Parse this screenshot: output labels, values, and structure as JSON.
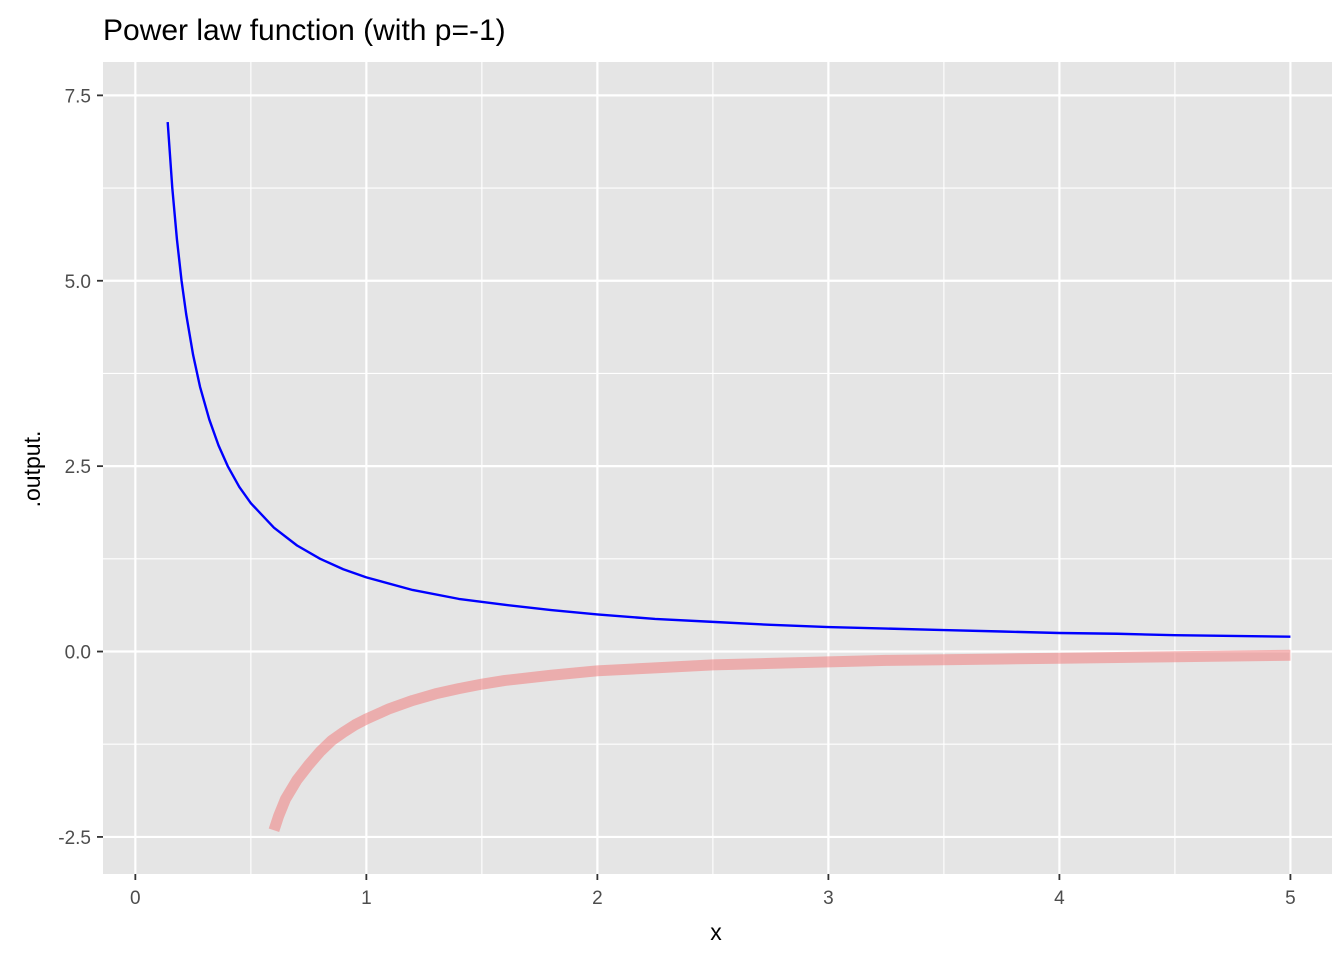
{
  "chart_data": {
    "type": "line",
    "title": "Power law function (with p=-1)",
    "xlabel": "x",
    "ylabel": ".output.",
    "xlim": [
      -0.14,
      5.18
    ],
    "ylim": [
      -3.0,
      7.95
    ],
    "x_ticks": [
      0,
      1,
      2,
      3,
      4,
      5
    ],
    "x_tick_labels": [
      "0",
      "1",
      "2",
      "3",
      "4",
      "5"
    ],
    "y_ticks": [
      -2.5,
      0.0,
      2.5,
      5.0,
      7.5
    ],
    "y_tick_labels": [
      "-2.5",
      "0.0",
      "2.5",
      "5.0",
      "7.5"
    ],
    "grid": true,
    "legend": "none",
    "panel_color": "#e5e5e5",
    "grid_color": "#ffffff",
    "series": [
      {
        "color": "#0000ff",
        "opacity": 1,
        "points": [
          [
            0.14,
            7.14
          ],
          [
            0.16,
            6.25
          ],
          [
            0.18,
            5.56
          ],
          [
            0.2,
            5.0
          ],
          [
            0.22,
            4.55
          ],
          [
            0.25,
            4.0
          ],
          [
            0.28,
            3.57
          ],
          [
            0.32,
            3.13
          ],
          [
            0.36,
            2.78
          ],
          [
            0.4,
            2.5
          ],
          [
            0.45,
            2.22
          ],
          [
            0.5,
            2.0
          ],
          [
            0.6,
            1.67
          ],
          [
            0.7,
            1.43
          ],
          [
            0.8,
            1.25
          ],
          [
            0.9,
            1.11
          ],
          [
            1.0,
            1.0
          ],
          [
            1.2,
            0.83
          ],
          [
            1.4,
            0.71
          ],
          [
            1.6,
            0.63
          ],
          [
            1.8,
            0.56
          ],
          [
            2.0,
            0.5
          ],
          [
            2.25,
            0.44
          ],
          [
            2.5,
            0.4
          ],
          [
            2.75,
            0.36
          ],
          [
            3.0,
            0.33
          ],
          [
            3.25,
            0.31
          ],
          [
            3.5,
            0.29
          ],
          [
            3.75,
            0.27
          ],
          [
            4.0,
            0.25
          ],
          [
            4.25,
            0.24
          ],
          [
            4.5,
            0.22
          ],
          [
            4.75,
            0.21
          ],
          [
            5.0,
            0.2
          ]
        ]
      },
      {
        "color": "#f08080",
        "opacity": 0.55,
        "points": [
          [
            0.6,
            -2.41
          ],
          [
            0.62,
            -2.22
          ],
          [
            0.65,
            -1.99
          ],
          [
            0.7,
            -1.73
          ],
          [
            0.75,
            -1.53
          ],
          [
            0.8,
            -1.35
          ],
          [
            0.85,
            -1.2
          ],
          [
            0.9,
            -1.09
          ],
          [
            0.95,
            -0.99
          ],
          [
            1.0,
            -0.91
          ],
          [
            1.1,
            -0.77
          ],
          [
            1.2,
            -0.66
          ],
          [
            1.3,
            -0.57
          ],
          [
            1.4,
            -0.5
          ],
          [
            1.5,
            -0.44
          ],
          [
            1.6,
            -0.39
          ],
          [
            1.8,
            -0.32
          ],
          [
            2.0,
            -0.26
          ],
          [
            2.25,
            -0.22
          ],
          [
            2.5,
            -0.18
          ],
          [
            2.75,
            -0.16
          ],
          [
            3.0,
            -0.14
          ],
          [
            3.25,
            -0.12
          ],
          [
            3.5,
            -0.11
          ],
          [
            3.75,
            -0.1
          ],
          [
            4.0,
            -0.09
          ],
          [
            4.25,
            -0.08
          ],
          [
            4.5,
            -0.07
          ],
          [
            4.75,
            -0.06
          ],
          [
            5.0,
            -0.05
          ]
        ]
      }
    ]
  }
}
